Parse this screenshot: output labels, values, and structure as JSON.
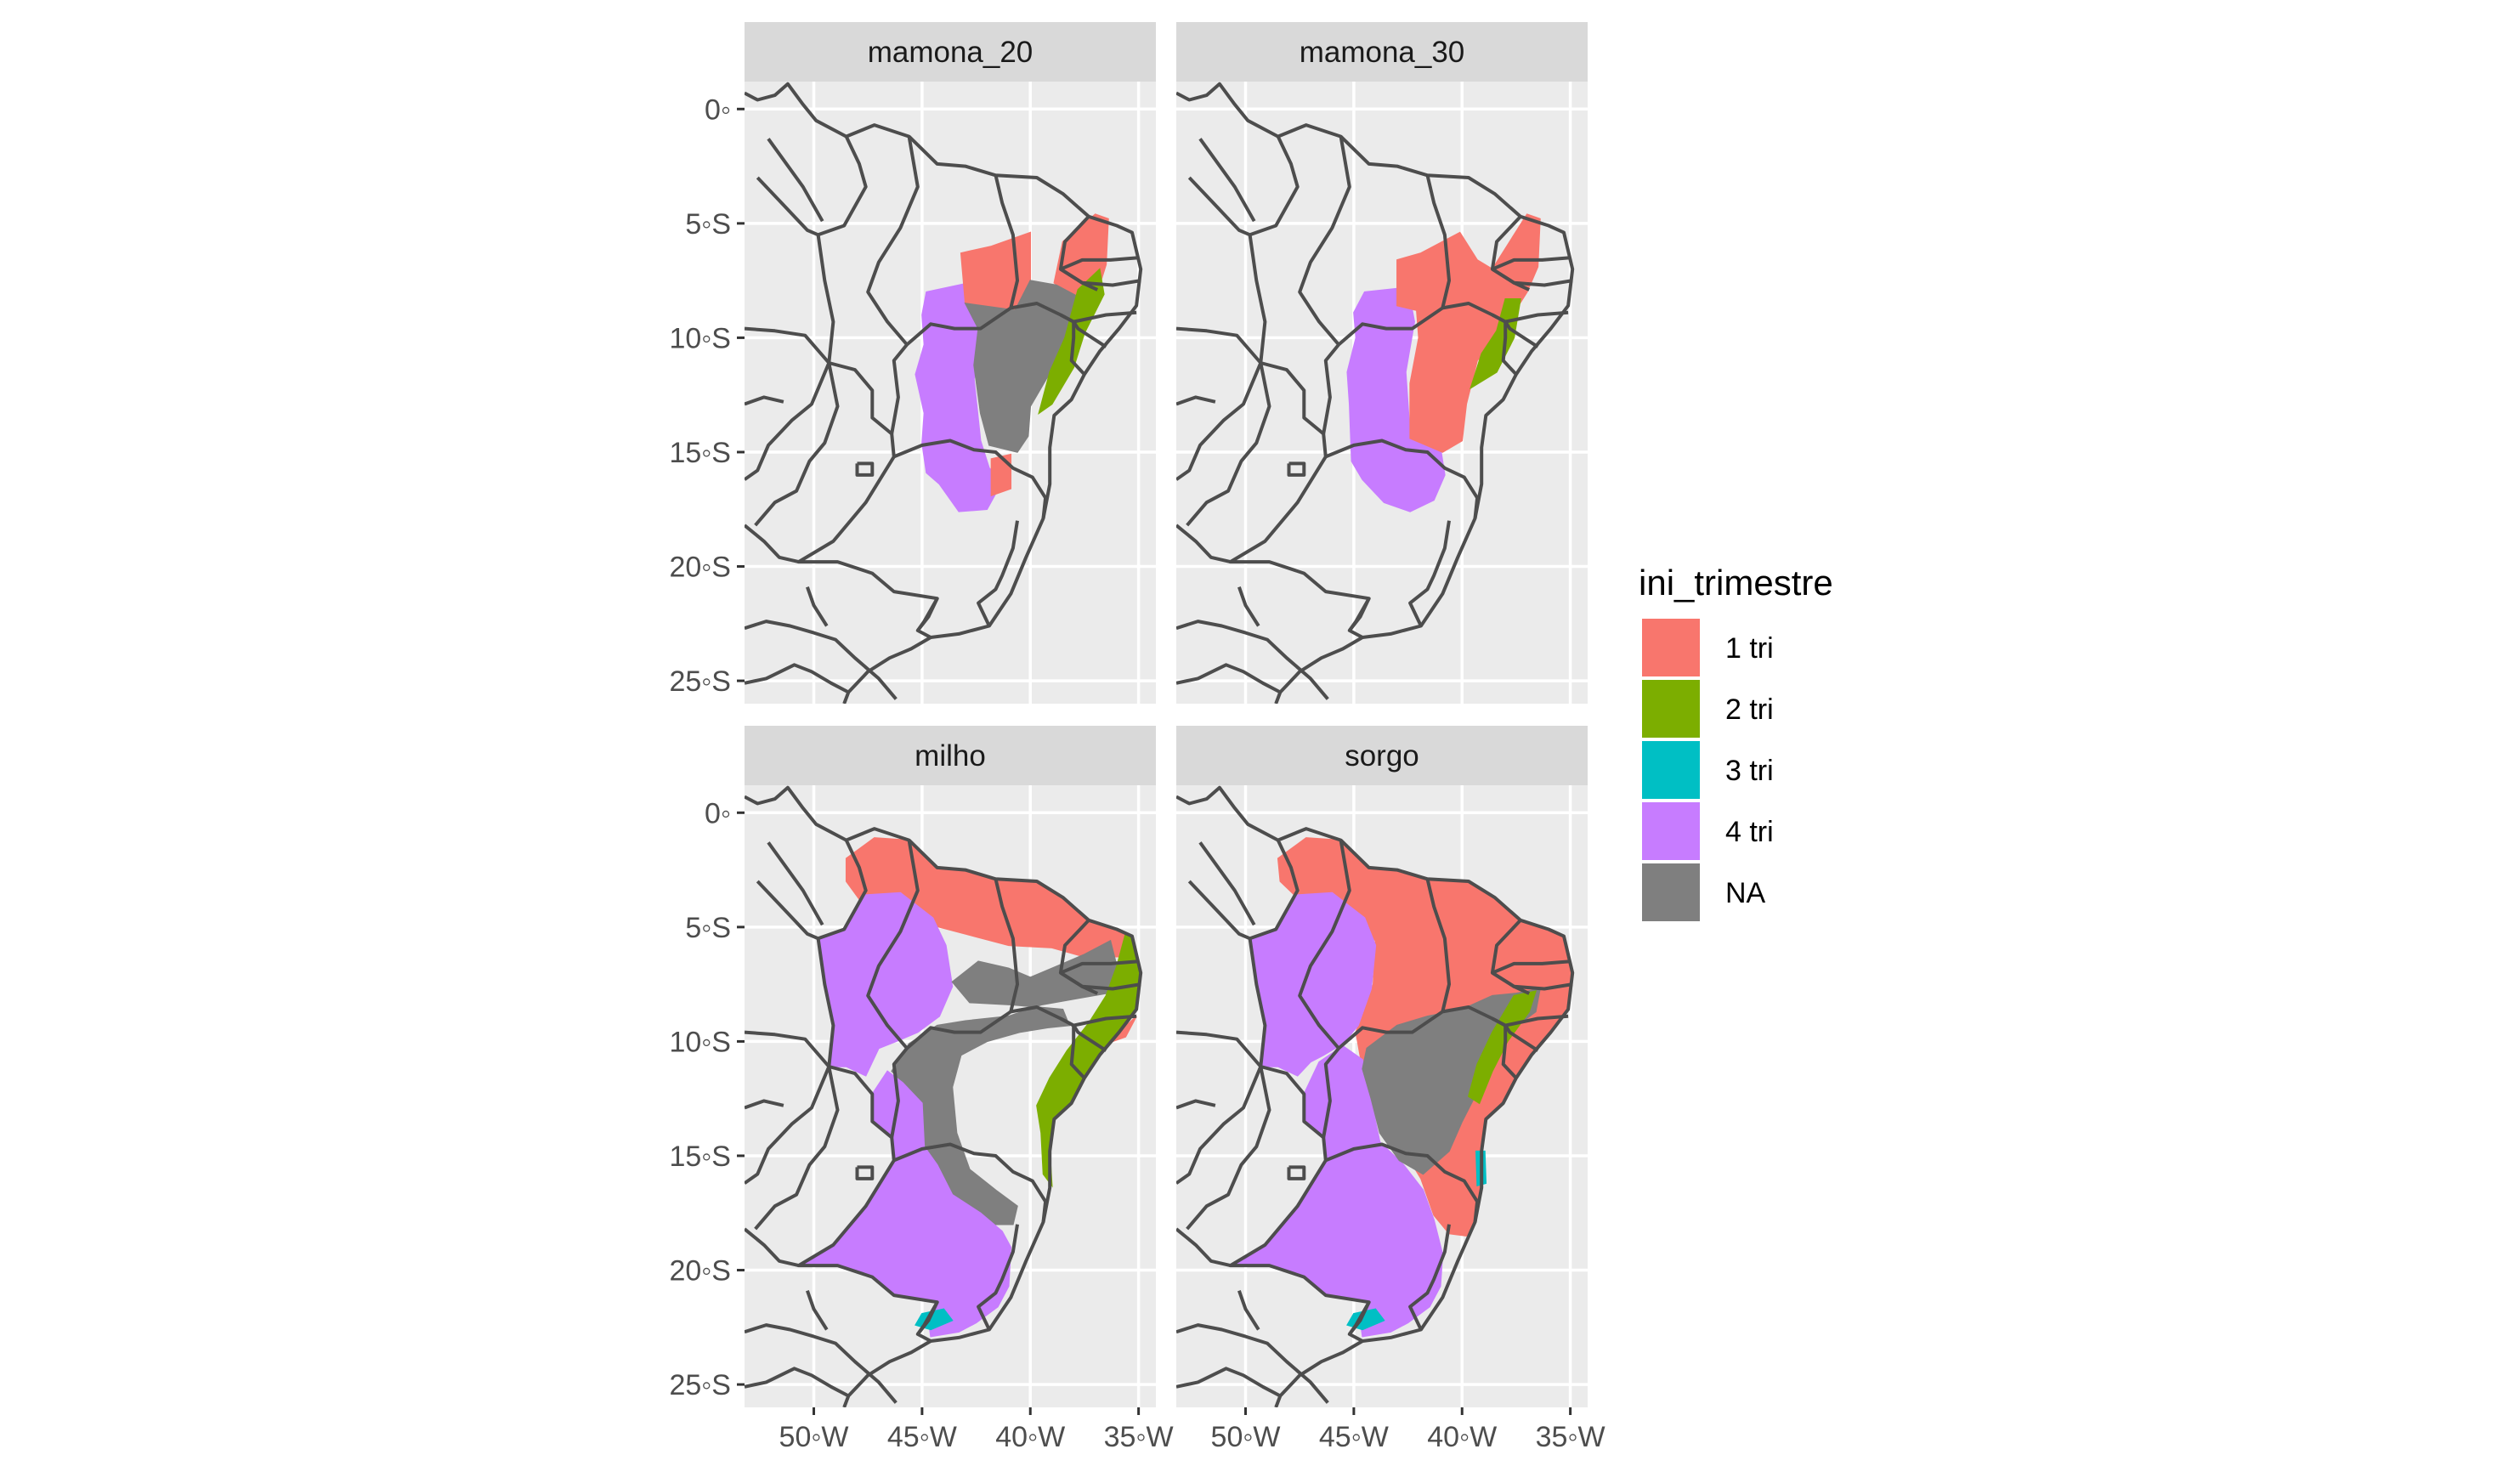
{
  "chart_data": {
    "type": "map",
    "facets": [
      {
        "label": "mamona_20",
        "regions": {
          "1 tri": "north-east coast and Piauí/Ceará band, small patch south of Bahia",
          "2 tri": "narrow band east of the NA core",
          "4 tri": "western Bahia",
          "NA": "central Bahia"
        }
      },
      {
        "label": "mamona_30",
        "regions": {
          "1 tri": "central and northern semi-arid",
          "2 tri": "small eastern block",
          "4 tri": "western Bahia",
          "NA": ""
        }
      },
      {
        "label": "milho",
        "regions": {
          "1 tri": "north coast band",
          "2 tri": "eastern coastal strip",
          "3 tri": "small patch near Rio de Janeiro",
          "4 tri": "west Maranhão/Tocantins and Minas Gerais",
          "NA": "arc around central Bahia"
        }
      },
      {
        "label": "sorgo",
        "regions": {
          "1 tri": "most of the north-east and Bahia coast",
          "2 tri": "small eastern block",
          "3 tri": "small patches near coast and Rio de Janeiro",
          "4 tri": "west Maranhão/Tocantins and Minas Gerais",
          "NA": "central Bahia"
        }
      }
    ],
    "x_ticks": [
      "50◦W",
      "45◦W",
      "40◦W",
      "35◦W"
    ],
    "y_ticks": [
      "0◦",
      "5◦S",
      "10◦S",
      "15◦S",
      "20◦S",
      "25◦S"
    ],
    "x_values": [
      -50,
      -45,
      -40,
      -35
    ],
    "y_values": [
      0,
      -5,
      -10,
      -15,
      -20,
      -25
    ],
    "xlim": [
      -53.2,
      -34.2
    ],
    "ylim": [
      -26.0,
      1.2
    ],
    "legend": {
      "title": "ini_trimestre",
      "placement": "right",
      "entries": [
        {
          "label": "1 tri",
          "color": "#F8766D"
        },
        {
          "label": "2 tri",
          "color": "#7CAE00"
        },
        {
          "label": "3 tri",
          "color": "#00BFC4"
        },
        {
          "label": "4 tri",
          "color": "#C77CFF"
        },
        {
          "label": "NA",
          "color": "#7F7F7F"
        }
      ]
    },
    "panel_background": "#EBEBEB",
    "strip_background": "#D9D9D9",
    "grid_color": "#FFFFFF",
    "border_color": "#4D4D4D"
  }
}
